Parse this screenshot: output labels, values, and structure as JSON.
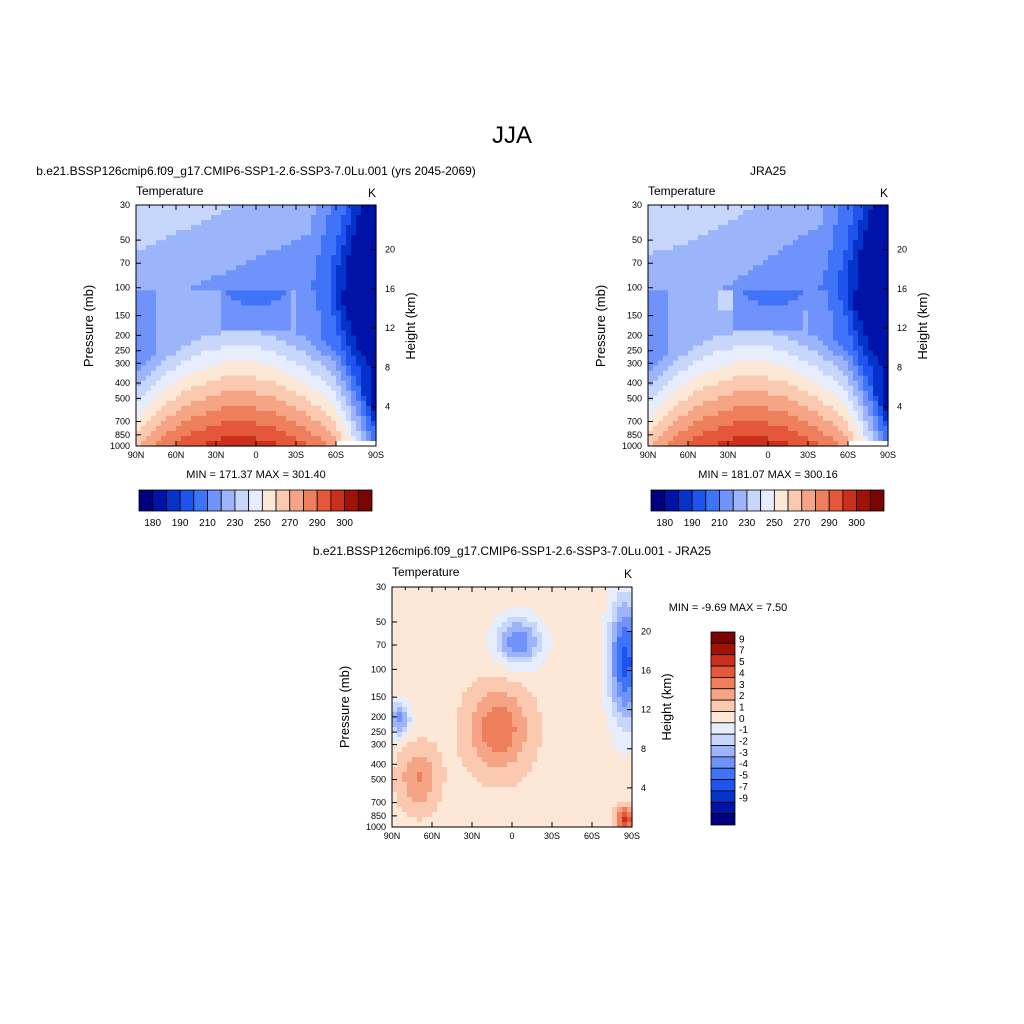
{
  "figure_title": "JJA",
  "colors": {
    "temp_scale": [
      "#00007f",
      "#0013a7",
      "#0433cc",
      "#1e53ee",
      "#3f73f8",
      "#6f93fb",
      "#9cb4fa",
      "#c6d7fb",
      "#e6eefd",
      "#fde7d7",
      "#fbc8b0",
      "#f5a585",
      "#ee7f5d",
      "#e4573a",
      "#cc2f1d",
      "#a01207",
      "#7a0403"
    ],
    "diff_scale": [
      "#00007f",
      "#0013a7",
      "#0433cc",
      "#1e53ee",
      "#3f73f8",
      "#6f93fb",
      "#9cb4fa",
      "#c6d7fb",
      "#e6eefd",
      "#fde7d7",
      "#fbc8b0",
      "#f5a585",
      "#ee7f5d",
      "#e4573a",
      "#cc2f1d",
      "#a01207",
      "#7a0403"
    ]
  },
  "chart_data": [
    {
      "type": "heatmap",
      "panel": "model",
      "title": "b.e21.BSSP126cmip6.f09_g17.CMIP6-SSP1-2.6-SSP3-7.0Lu.001 (yrs 2045-2069)",
      "left_label": "Temperature",
      "units": "K",
      "xlabel": "",
      "ylabel": "Pressure (mb)",
      "ylabel_right": "Height (km)",
      "x_ticks": [
        "90N",
        "60N",
        "30N",
        "0",
        "30S",
        "60S",
        "90S"
      ],
      "y_ticks": [
        30,
        50,
        70,
        100,
        150,
        200,
        250,
        300,
        400,
        500,
        700,
        850,
        1000
      ],
      "height_ticks": [
        4,
        8,
        12,
        16,
        20
      ],
      "min_text": "MIN = 171.37  MAX = 301.40",
      "levels": [
        180,
        190,
        210,
        230,
        250,
        270,
        290,
        300
      ],
      "colorbar_labels": [
        "180",
        "190",
        "210",
        "230",
        "250",
        "270",
        "290",
        "300"
      ],
      "min": 171.37,
      "max": 301.4
    },
    {
      "type": "heatmap",
      "panel": "obs",
      "title": "JRA25",
      "left_label": "Temperature",
      "units": "K",
      "xlabel": "",
      "ylabel": "Pressure (mb)",
      "ylabel_right": "Height (km)",
      "x_ticks": [
        "90N",
        "60N",
        "30N",
        "0",
        "30S",
        "60S",
        "90S"
      ],
      "y_ticks": [
        30,
        50,
        70,
        100,
        150,
        200,
        250,
        300,
        400,
        500,
        700,
        850,
        1000
      ],
      "height_ticks": [
        4,
        8,
        12,
        16,
        20
      ],
      "min_text": "MIN = 181.07  MAX = 300.16",
      "colorbar_labels": [
        "180",
        "190",
        "210",
        "230",
        "250",
        "270",
        "290",
        "300"
      ],
      "min": 181.07,
      "max": 300.16
    },
    {
      "type": "heatmap",
      "panel": "diff",
      "title": "b.e21.BSSP126cmip6.f09_g17.CMIP6-SSP1-2.6-SSP3-7.0Lu.001 - JRA25",
      "left_label": "Temperature",
      "units": "K",
      "xlabel": "",
      "ylabel": "Pressure (mb)",
      "ylabel_right": "Height (km)",
      "x_ticks": [
        "90N",
        "60N",
        "30N",
        "0",
        "30S",
        "60S",
        "90S"
      ],
      "y_ticks": [
        30,
        50,
        70,
        100,
        150,
        200,
        250,
        300,
        400,
        500,
        700,
        850,
        1000
      ],
      "height_ticks": [
        4,
        8,
        12,
        16,
        20
      ],
      "min_text": "MIN =  -9.69  MAX =   7.50",
      "colorbar_labels": [
        "9",
        "7",
        "5",
        "4",
        "3",
        "2",
        "1",
        "0",
        "-1",
        "-2",
        "-3",
        "-4",
        "-5",
        "-7",
        "-9"
      ],
      "min": -9.69,
      "max": 7.5
    }
  ]
}
